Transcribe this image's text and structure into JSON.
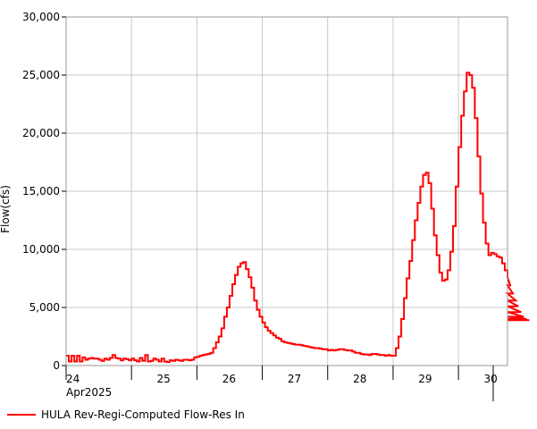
{
  "chart_data": {
    "type": "line",
    "title": "",
    "xlabel": "",
    "ylabel": "Flow(cfs)",
    "ylim": [
      0,
      30000
    ],
    "yticks": [
      0,
      5000,
      10000,
      15000,
      20000,
      25000,
      30000
    ],
    "ytick_labels": [
      "0",
      "5,000",
      "10,000",
      "15,000",
      "20,000",
      "25,000",
      "30,000"
    ],
    "xlim": [
      0,
      6.75
    ],
    "xtick_days": [
      0,
      1,
      2,
      3,
      4,
      5,
      6
    ],
    "xtick_labels": [
      "24",
      "25",
      "26",
      "27",
      "28",
      "29",
      "30"
    ],
    "x_month_label": "Apr2025",
    "x_units": "days since 24 Apr 2025 00:00 (hourly data)",
    "grid": true,
    "legend_position": "bottom-left",
    "series": [
      {
        "name": "HULA Rev-Regi-Computed Flow-Res In",
        "color": "#ff0000",
        "step": "hourly",
        "values": [
          850,
          350,
          850,
          350,
          850,
          350,
          700,
          500,
          600,
          650,
          600,
          600,
          500,
          400,
          600,
          500,
          650,
          900,
          650,
          600,
          450,
          600,
          550,
          450,
          600,
          450,
          350,
          650,
          400,
          900,
          350,
          400,
          600,
          500,
          350,
          600,
          350,
          300,
          450,
          400,
          500,
          450,
          400,
          500,
          500,
          450,
          500,
          700,
          750,
          850,
          900,
          950,
          1000,
          1100,
          1500,
          2000,
          2500,
          3200,
          4200,
          5000,
          6000,
          7000,
          7800,
          8500,
          8800,
          8900,
          8300,
          7600,
          6700,
          5600,
          4800,
          4200,
          3700,
          3300,
          3000,
          2800,
          2600,
          2400,
          2300,
          2100,
          2000,
          1950,
          1900,
          1850,
          1800,
          1800,
          1750,
          1700,
          1650,
          1600,
          1550,
          1500,
          1500,
          1450,
          1400,
          1400,
          1300,
          1350,
          1300,
          1350,
          1400,
          1400,
          1350,
          1300,
          1300,
          1200,
          1100,
          1100,
          1000,
          950,
          950,
          900,
          1000,
          1000,
          950,
          900,
          900,
          850,
          900,
          850,
          850,
          1500,
          2500,
          4000,
          5800,
          7500,
          9000,
          10800,
          12500,
          14000,
          15400,
          16400,
          16600,
          15700,
          13500,
          11200,
          9500,
          8000,
          7300,
          7400,
          8200,
          9800,
          12000,
          15400,
          18800,
          21500,
          23600,
          25200,
          25000,
          23900,
          21300,
          18000,
          14800,
          12300,
          10500,
          9500,
          9700,
          9600,
          9400,
          9300,
          8800,
          8200,
          7600,
          6900,
          6200,
          5600,
          5100,
          4600,
          4200,
          4000,
          3900
        ]
      }
    ]
  }
}
